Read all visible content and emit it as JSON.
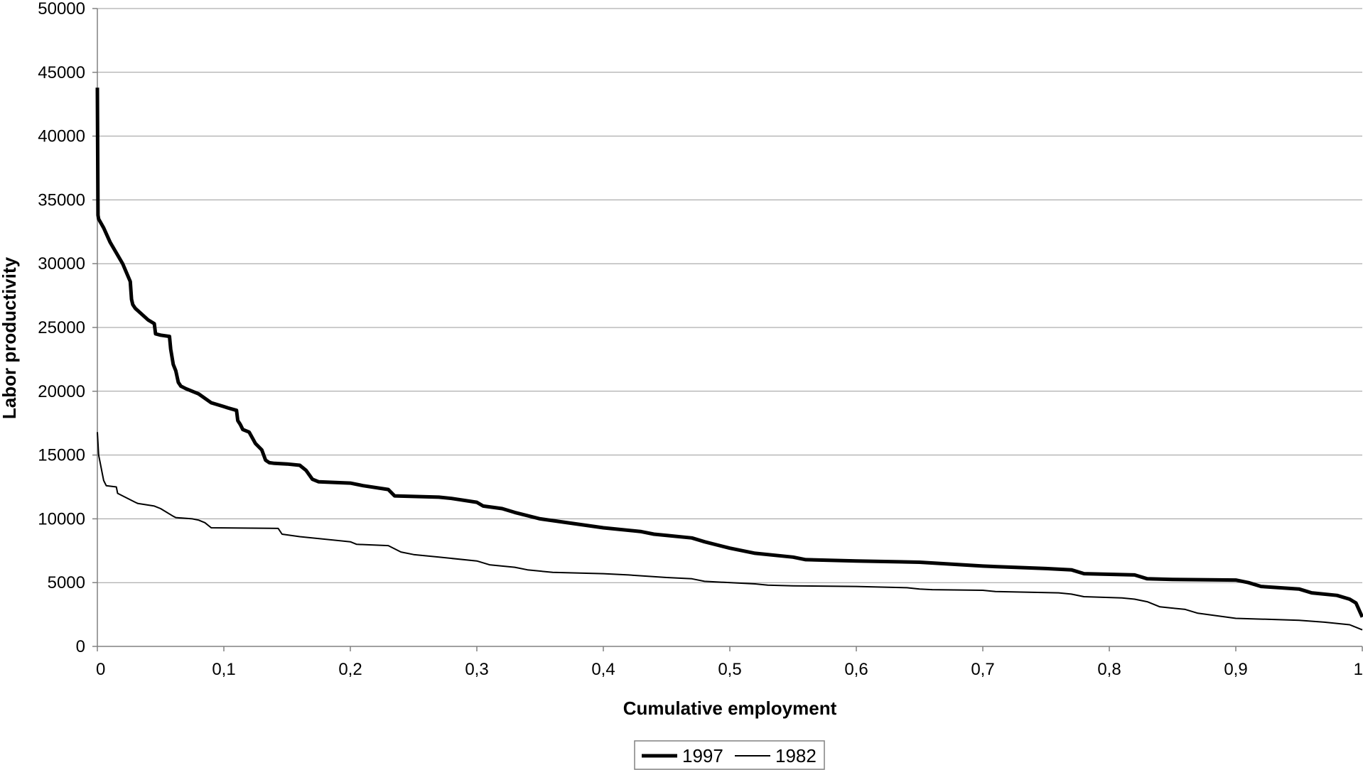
{
  "chart_data": {
    "type": "line",
    "title": "",
    "xlabel": "Cumulative employment",
    "ylabel": "Labor productivity",
    "xlim": [
      0,
      1
    ],
    "ylim": [
      0,
      50000
    ],
    "x_ticks": [
      0,
      0.1,
      0.2,
      0.3,
      0.4,
      0.5,
      0.6,
      0.7,
      0.8,
      0.9,
      1
    ],
    "x_tick_labels": [
      "0",
      "0,1",
      "0,2",
      "0,3",
      "0,4",
      "0,5",
      "0,6",
      "0,7",
      "0,8",
      "0,9",
      "1"
    ],
    "y_ticks": [
      0,
      5000,
      10000,
      15000,
      20000,
      25000,
      30000,
      35000,
      40000,
      45000,
      50000
    ],
    "y_tick_labels": [
      "0",
      "5000",
      "10000",
      "15000",
      "20000",
      "25000",
      "30000",
      "35000",
      "40000",
      "45000",
      "50000"
    ],
    "grid": "horizontal",
    "legend_position": "bottom",
    "series": [
      {
        "name": "1997",
        "color": "#000000",
        "style": "thick",
        "x": [
          0,
          0.0005,
          0.001,
          0.005,
          0.01,
          0.02,
          0.026,
          0.027,
          0.028,
          0.03,
          0.04,
          0.045,
          0.046,
          0.05,
          0.057,
          0.058,
          0.06,
          0.062,
          0.064,
          0.066,
          0.07,
          0.08,
          0.09,
          0.1,
          0.103,
          0.11,
          0.111,
          0.113,
          0.115,
          0.12,
          0.125,
          0.128,
          0.13,
          0.133,
          0.136,
          0.14,
          0.15,
          0.16,
          0.165,
          0.17,
          0.175,
          0.2,
          0.21,
          0.23,
          0.235,
          0.27,
          0.28,
          0.3,
          0.305,
          0.32,
          0.33,
          0.35,
          0.4,
          0.43,
          0.44,
          0.45,
          0.47,
          0.48,
          0.5,
          0.52,
          0.55,
          0.56,
          0.6,
          0.65,
          0.7,
          0.75,
          0.77,
          0.78,
          0.82,
          0.83,
          0.85,
          0.9,
          0.91,
          0.92,
          0.95,
          0.96,
          0.98,
          0.99,
          0.995,
          1
        ],
        "y": [
          43800,
          33800,
          33500,
          32800,
          31700,
          30000,
          28600,
          27200,
          26800,
          26500,
          25600,
          25300,
          24500,
          24400,
          24300,
          23300,
          22100,
          21600,
          20700,
          20400,
          20200,
          19800,
          19100,
          18800,
          18700,
          18500,
          17700,
          17400,
          17000,
          16800,
          15900,
          15600,
          15400,
          14600,
          14400,
          14350,
          14300,
          14200,
          13800,
          13100,
          12900,
          12800,
          12600,
          12300,
          11800,
          11700,
          11600,
          11300,
          11000,
          10800,
          10500,
          10000,
          9300,
          9000,
          8800,
          8700,
          8500,
          8200,
          7700,
          7300,
          7000,
          6800,
          6700,
          6600,
          6300,
          6100,
          6000,
          5700,
          5600,
          5300,
          5250,
          5200,
          5000,
          4700,
          4500,
          4200,
          4000,
          3700,
          3400,
          2300
        ]
      },
      {
        "name": "1982",
        "color": "#000000",
        "style": "thin",
        "x": [
          0,
          0.001,
          0.002,
          0.004,
          0.005,
          0.007,
          0.015,
          0.016,
          0.02,
          0.03,
          0.032,
          0.045,
          0.05,
          0.06,
          0.062,
          0.075,
          0.08,
          0.085,
          0.09,
          0.143,
          0.146,
          0.16,
          0.2,
          0.205,
          0.23,
          0.24,
          0.25,
          0.27,
          0.3,
          0.31,
          0.33,
          0.34,
          0.36,
          0.4,
          0.42,
          0.45,
          0.47,
          0.48,
          0.52,
          0.53,
          0.55,
          0.6,
          0.64,
          0.65,
          0.66,
          0.7,
          0.71,
          0.76,
          0.77,
          0.78,
          0.81,
          0.82,
          0.83,
          0.84,
          0.85,
          0.86,
          0.87,
          0.9,
          0.95,
          0.97,
          0.99,
          1
        ],
        "y": [
          16800,
          15000,
          14500,
          13500,
          13000,
          12600,
          12500,
          12000,
          11800,
          11300,
          11200,
          11000,
          10800,
          10200,
          10100,
          10000,
          9900,
          9700,
          9300,
          9250,
          8800,
          8600,
          8200,
          8000,
          7900,
          7400,
          7200,
          7000,
          6700,
          6400,
          6200,
          6000,
          5800,
          5700,
          5600,
          5400,
          5300,
          5100,
          4900,
          4800,
          4750,
          4700,
          4600,
          4500,
          4450,
          4400,
          4300,
          4200,
          4100,
          3900,
          3800,
          3700,
          3500,
          3100,
          3000,
          2900,
          2600,
          2200,
          2050,
          1900,
          1700,
          1300
        ]
      }
    ]
  }
}
